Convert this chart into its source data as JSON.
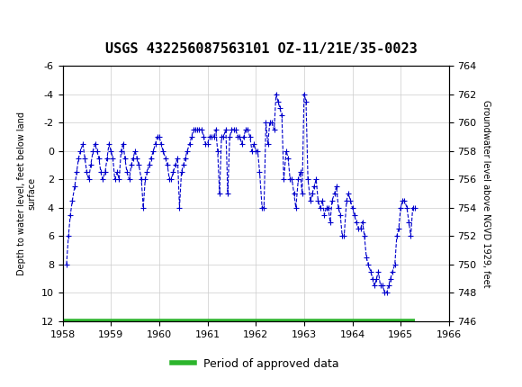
{
  "title": "USGS 432256087563101 OZ-11/21E/35-0023",
  "left_ylabel": "Depth to water level, feet below land\nsurface",
  "right_ylabel": "Groundwater level above NGVD 1929, feet",
  "xlabel": "",
  "xlim": [
    1958,
    1966
  ],
  "ylim_left": [
    12,
    -6
  ],
  "ylim_right": [
    746,
    764
  ],
  "xticks": [
    1958,
    1959,
    1960,
    1961,
    1962,
    1963,
    1964,
    1965,
    1966
  ],
  "yticks_left": [
    -6,
    -4,
    -2,
    0,
    2,
    4,
    6,
    8,
    10,
    12
  ],
  "yticks_right": [
    746,
    748,
    750,
    752,
    754,
    756,
    758,
    760,
    762,
    764
  ],
  "header_color": "#1a6b3a",
  "line_color": "#0000cc",
  "marker_color": "#0000cc",
  "legend_color": "#2db52d",
  "background_color": "#ffffff",
  "grid_color": "#cccccc",
  "approved_bar_y": 12,
  "approved_bar_xstart": 1958.0,
  "approved_bar_xend": 1965.3,
  "data_x": [
    1958.08,
    1958.12,
    1958.16,
    1958.2,
    1958.25,
    1958.29,
    1958.33,
    1958.37,
    1958.42,
    1958.46,
    1958.5,
    1958.54,
    1958.58,
    1958.63,
    1958.67,
    1958.71,
    1958.75,
    1958.79,
    1958.83,
    1958.88,
    1958.92,
    1958.96,
    1959.0,
    1959.04,
    1959.08,
    1959.13,
    1959.17,
    1959.21,
    1959.25,
    1959.29,
    1959.33,
    1959.38,
    1959.42,
    1959.46,
    1959.5,
    1959.54,
    1959.58,
    1959.63,
    1959.67,
    1959.71,
    1959.75,
    1959.79,
    1959.83,
    1959.88,
    1959.92,
    1959.96,
    1960.0,
    1960.04,
    1960.08,
    1960.13,
    1960.17,
    1960.21,
    1960.25,
    1960.29,
    1960.33,
    1960.38,
    1960.42,
    1960.46,
    1960.5,
    1960.54,
    1960.58,
    1960.63,
    1960.67,
    1960.71,
    1960.75,
    1960.79,
    1960.83,
    1960.88,
    1960.92,
    1960.96,
    1961.0,
    1961.04,
    1961.08,
    1961.13,
    1961.17,
    1961.21,
    1961.25,
    1961.29,
    1961.33,
    1961.38,
    1961.42,
    1961.46,
    1961.5,
    1961.54,
    1961.58,
    1961.63,
    1961.67,
    1961.71,
    1961.75,
    1961.79,
    1961.83,
    1961.88,
    1961.92,
    1961.96,
    1962.0,
    1962.04,
    1962.08,
    1962.13,
    1962.17,
    1962.21,
    1962.25,
    1962.29,
    1962.33,
    1962.38,
    1962.42,
    1962.46,
    1962.5,
    1962.54,
    1962.58,
    1962.63,
    1962.67,
    1962.71,
    1962.75,
    1962.79,
    1962.83,
    1962.88,
    1962.92,
    1962.96,
    1963.0,
    1963.04,
    1963.08,
    1963.13,
    1963.17,
    1963.21,
    1963.25,
    1963.29,
    1963.33,
    1963.38,
    1963.42,
    1963.46,
    1963.5,
    1963.54,
    1963.58,
    1963.63,
    1963.67,
    1963.71,
    1963.75,
    1963.79,
    1963.83,
    1963.88,
    1963.92,
    1963.96,
    1964.0,
    1964.04,
    1964.08,
    1964.13,
    1964.17,
    1964.21,
    1964.25,
    1964.29,
    1964.33,
    1964.38,
    1964.42,
    1964.46,
    1964.5,
    1964.54,
    1964.58,
    1964.63,
    1964.67,
    1964.71,
    1964.75,
    1964.79,
    1964.83,
    1964.88,
    1964.92,
    1964.96,
    1965.0,
    1965.04,
    1965.08,
    1965.13,
    1965.17,
    1965.21,
    1965.25,
    1965.29
  ],
  "data_y": [
    8.0,
    6.0,
    4.5,
    3.5,
    2.5,
    1.5,
    0.5,
    0.0,
    -0.5,
    0.5,
    1.5,
    2.0,
    1.0,
    0.0,
    -0.5,
    0.0,
    0.5,
    1.5,
    2.0,
    1.5,
    0.5,
    -0.5,
    0.0,
    0.5,
    2.0,
    1.5,
    2.0,
    0.0,
    -0.5,
    0.5,
    1.5,
    2.0,
    1.0,
    0.5,
    0.0,
    0.5,
    1.0,
    2.0,
    4.0,
    2.0,
    1.5,
    1.0,
    0.5,
    0.0,
    -0.5,
    -1.0,
    -1.0,
    -0.5,
    0.0,
    0.5,
    1.0,
    2.0,
    2.0,
    1.5,
    1.0,
    0.5,
    4.0,
    1.5,
    1.0,
    0.5,
    0.0,
    -0.5,
    -1.0,
    -1.5,
    -1.5,
    -1.5,
    -1.5,
    -1.5,
    -1.0,
    -0.5,
    -0.5,
    -1.0,
    -1.0,
    -1.0,
    -1.5,
    0.0,
    3.0,
    -1.0,
    -1.0,
    -1.5,
    3.0,
    -1.0,
    -1.5,
    -1.5,
    -1.5,
    -1.0,
    -1.0,
    -0.5,
    -1.0,
    -1.5,
    -1.5,
    -1.0,
    0.0,
    -0.5,
    0.0,
    0.0,
    1.5,
    4.0,
    4.0,
    -2.0,
    -0.5,
    -2.0,
    -2.0,
    -1.5,
    -4.0,
    -3.5,
    -3.0,
    -2.5,
    2.0,
    0.0,
    0.5,
    2.0,
    2.0,
    3.0,
    4.0,
    2.0,
    1.5,
    3.0,
    -4.0,
    -3.5,
    2.0,
    3.5,
    3.0,
    2.5,
    2.0,
    3.5,
    4.0,
    3.5,
    4.5,
    4.0,
    4.0,
    5.0,
    3.5,
    3.0,
    2.5,
    4.0,
    4.5,
    6.0,
    6.0,
    3.5,
    3.0,
    3.5,
    4.0,
    4.5,
    5.0,
    5.5,
    5.5,
    5.0,
    6.0,
    7.5,
    8.0,
    8.5,
    9.0,
    9.5,
    9.0,
    8.5,
    9.5,
    9.5,
    10.0,
    10.0,
    9.5,
    9.0,
    8.5,
    8.0,
    6.0,
    5.5,
    4.0,
    3.5,
    3.5,
    4.0,
    5.0,
    6.0,
    4.0,
    4.0
  ]
}
